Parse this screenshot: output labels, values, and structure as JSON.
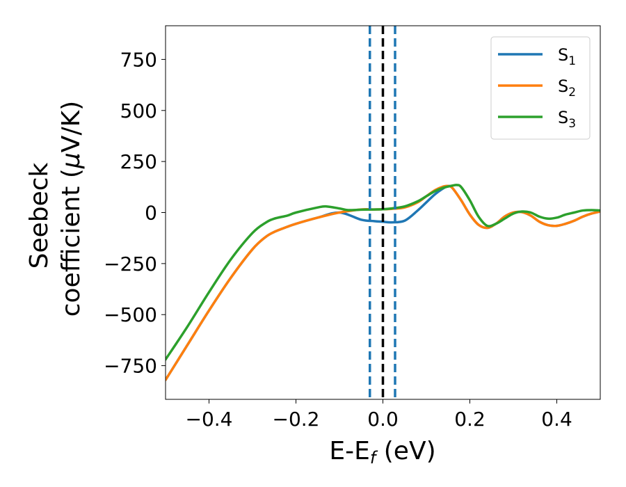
{
  "chart_data": {
    "type": "line",
    "xlabel": "E-E",
    "xlabel_sub": "f",
    "xlabel_unit": " (eV)",
    "ylabel_line1": "Seebeck",
    "ylabel_line2": "coefficient  (",
    "ylabel_mu": "μ",
    "ylabel_unit": "V/K)",
    "xlim": [
      -0.5,
      0.5
    ],
    "ylim": [
      -915,
      915
    ],
    "xticks": [
      -0.4,
      -0.2,
      0.0,
      0.2,
      0.4
    ],
    "xtick_labels": [
      "−0.4",
      "−0.2",
      "0.0",
      "0.2",
      "0.4"
    ],
    "yticks": [
      750,
      500,
      250,
      0,
      -250,
      -500,
      -750
    ],
    "ytick_labels": [
      "750",
      "500",
      "250",
      "0",
      "−250",
      "−500",
      "−750"
    ],
    "grid": false,
    "legend_position": "top-right",
    "vlines": [
      {
        "x": -0.03,
        "style": "dashed",
        "color": "#1f77b4"
      },
      {
        "x": 0.0,
        "style": "dashed",
        "color": "#000000"
      },
      {
        "x": 0.028,
        "style": "dashed",
        "color": "#1f77b4"
      }
    ],
    "series": [
      {
        "name": "S",
        "sub": "1",
        "color": "#1f77b4",
        "x": [
          -0.5,
          -0.45,
          -0.4,
          -0.35,
          -0.3,
          -0.27,
          -0.25,
          -0.22,
          -0.2,
          -0.15,
          -0.1,
          -0.05,
          -0.02,
          0.0,
          0.02,
          0.05,
          0.08,
          0.1,
          0.12,
          0.14,
          0.15,
          0.16,
          0.18,
          0.2,
          0.22,
          0.24,
          0.26,
          0.28,
          0.3,
          0.32,
          0.34,
          0.36,
          0.38,
          0.4,
          0.42,
          0.44,
          0.46,
          0.48,
          0.5
        ],
        "y": [
          -820,
          -650,
          -480,
          -320,
          -180,
          -120,
          -95,
          -70,
          -55,
          -25,
          0,
          -35,
          -42,
          -45,
          -48,
          -40,
          10,
          50,
          90,
          120,
          130,
          120,
          60,
          -10,
          -60,
          -75,
          -55,
          -20,
          0,
          2,
          -15,
          -45,
          -62,
          -65,
          -55,
          -40,
          -20,
          -5,
          5
        ]
      },
      {
        "name": "S",
        "sub": "2",
        "color": "#ff7f0e",
        "x": [
          -0.5,
          -0.45,
          -0.4,
          -0.35,
          -0.3,
          -0.27,
          -0.25,
          -0.22,
          -0.2,
          -0.15,
          -0.1,
          -0.05,
          -0.02,
          0.0,
          0.02,
          0.05,
          0.08,
          0.1,
          0.12,
          0.14,
          0.15,
          0.16,
          0.18,
          0.2,
          0.22,
          0.24,
          0.26,
          0.28,
          0.3,
          0.32,
          0.34,
          0.36,
          0.38,
          0.4,
          0.42,
          0.44,
          0.46,
          0.48,
          0.5
        ],
        "y": [
          -820,
          -650,
          -480,
          -320,
          -180,
          -120,
          -95,
          -70,
          -55,
          -25,
          0,
          15,
          15,
          16,
          18,
          25,
          50,
          80,
          110,
          128,
          130,
          120,
          60,
          -10,
          -60,
          -75,
          -55,
          -20,
          0,
          2,
          -15,
          -45,
          -62,
          -65,
          -55,
          -40,
          -20,
          -5,
          5
        ]
      },
      {
        "name": "S",
        "sub": "3",
        "color": "#2ca02c",
        "x": [
          -0.5,
          -0.45,
          -0.4,
          -0.35,
          -0.3,
          -0.27,
          -0.25,
          -0.22,
          -0.2,
          -0.15,
          -0.13,
          -0.1,
          -0.08,
          -0.05,
          -0.02,
          0.0,
          0.02,
          0.05,
          0.08,
          0.1,
          0.12,
          0.14,
          0.16,
          0.17,
          0.18,
          0.2,
          0.22,
          0.24,
          0.26,
          0.28,
          0.3,
          0.32,
          0.34,
          0.36,
          0.38,
          0.4,
          0.42,
          0.44,
          0.46,
          0.48,
          0.5
        ],
        "y": [
          -720,
          -560,
          -390,
          -230,
          -100,
          -50,
          -30,
          -15,
          0,
          25,
          30,
          20,
          12,
          14,
          15,
          16,
          20,
          30,
          55,
          80,
          105,
          122,
          132,
          135,
          125,
          60,
          -20,
          -65,
          -55,
          -30,
          -5,
          5,
          0,
          -20,
          -30,
          -25,
          -10,
          0,
          10,
          12,
          10
        ]
      }
    ]
  }
}
